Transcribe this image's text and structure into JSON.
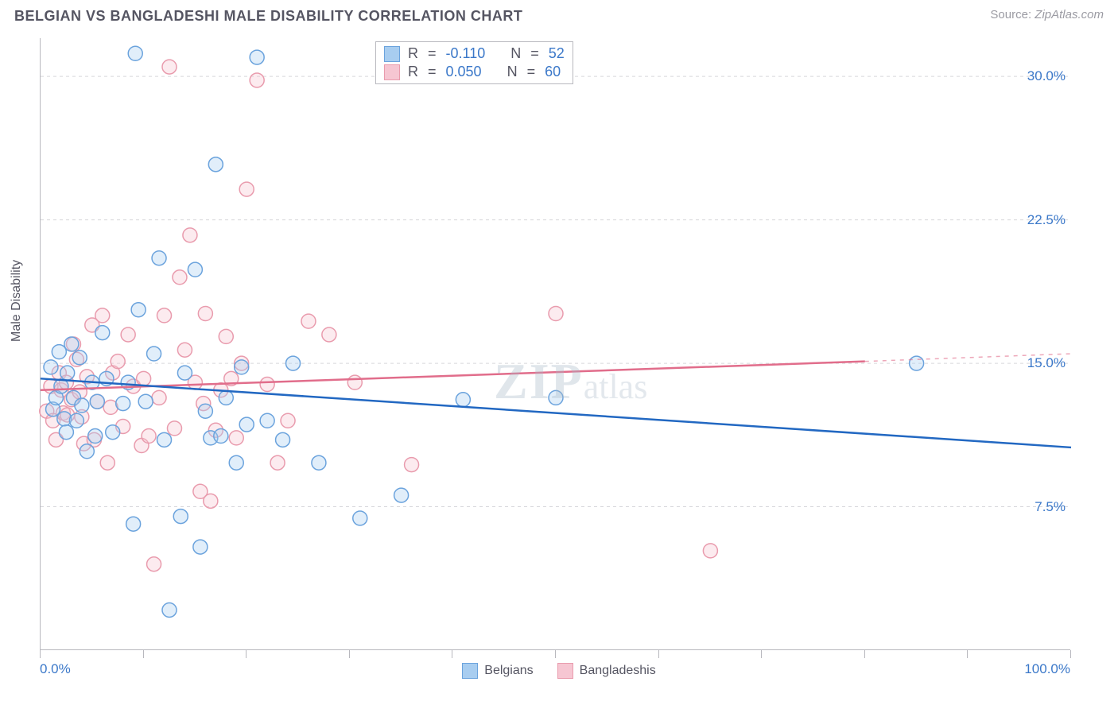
{
  "title": "BELGIAN VS BANGLADESHI MALE DISABILITY CORRELATION CHART",
  "source_label": "Source:",
  "source_value": "ZipAtlas.com",
  "ylabel": "Male Disability",
  "watermark": {
    "zip": "ZIP",
    "atlas": "atlas"
  },
  "chart": {
    "type": "scatter",
    "xlim": [
      0,
      100
    ],
    "ylim": [
      0,
      32
    ],
    "xtick_positions": [
      0,
      10,
      20,
      30,
      40,
      50,
      60,
      70,
      80,
      90,
      100
    ],
    "xtick_labels": {
      "0": "0.0%",
      "100": "100.0%"
    },
    "ytick_positions": [
      7.5,
      15.0,
      22.5,
      30.0
    ],
    "ytick_labels": [
      "7.5%",
      "15.0%",
      "22.5%",
      "30.0%"
    ],
    "grid_color": "#d6d6da",
    "axis_color": "#b8b8be",
    "background_color": "#ffffff",
    "marker_radius": 9,
    "marker_stroke_width": 1.5,
    "marker_fill_opacity": 0.35,
    "text_color": "#555562",
    "value_color": "#3b78c9",
    "label_fontsize": 16,
    "tick_fontsize": 17,
    "title_fontsize": 18
  },
  "series": [
    {
      "name": "Belgians",
      "color_stroke": "#6ba3dd",
      "color_fill": "#a8cdf0",
      "trend_color": "#2268c2",
      "trend_width": 2.5,
      "trend": {
        "x1": 0,
        "y1": 14.2,
        "x2": 100,
        "y2": 10.6
      },
      "R": "-0.110",
      "N": "52",
      "points": [
        [
          1.0,
          14.8
        ],
        [
          1.2,
          12.6
        ],
        [
          1.5,
          13.2
        ],
        [
          1.8,
          15.6
        ],
        [
          2.0,
          13.8
        ],
        [
          2.3,
          12.1
        ],
        [
          2.5,
          11.4
        ],
        [
          2.6,
          14.5
        ],
        [
          3.0,
          16.0
        ],
        [
          3.2,
          13.2
        ],
        [
          3.5,
          12.0
        ],
        [
          3.8,
          15.3
        ],
        [
          4.0,
          12.8
        ],
        [
          4.5,
          10.4
        ],
        [
          5.0,
          14.0
        ],
        [
          5.3,
          11.2
        ],
        [
          5.5,
          13.0
        ],
        [
          6.0,
          16.6
        ],
        [
          6.4,
          14.2
        ],
        [
          7.0,
          11.4
        ],
        [
          8.0,
          12.9
        ],
        [
          8.5,
          14.0
        ],
        [
          9.0,
          6.6
        ],
        [
          9.2,
          31.2
        ],
        [
          9.5,
          17.8
        ],
        [
          10.2,
          13.0
        ],
        [
          11.0,
          15.5
        ],
        [
          11.5,
          20.5
        ],
        [
          12.0,
          11.0
        ],
        [
          12.5,
          2.1
        ],
        [
          13.6,
          7.0
        ],
        [
          14.0,
          14.5
        ],
        [
          15.0,
          19.9
        ],
        [
          15.5,
          5.4
        ],
        [
          16.0,
          12.5
        ],
        [
          16.5,
          11.1
        ],
        [
          17.0,
          25.4
        ],
        [
          17.5,
          11.2
        ],
        [
          18.0,
          13.2
        ],
        [
          19.0,
          9.8
        ],
        [
          19.5,
          14.8
        ],
        [
          20.0,
          11.8
        ],
        [
          21.0,
          31.0
        ],
        [
          22.0,
          12.0
        ],
        [
          23.5,
          11.0
        ],
        [
          24.5,
          15.0
        ],
        [
          27.0,
          9.8
        ],
        [
          31.0,
          6.9
        ],
        [
          35.0,
          8.1
        ],
        [
          41.0,
          13.1
        ],
        [
          50.0,
          13.2
        ],
        [
          85.0,
          15.0
        ]
      ]
    },
    {
      "name": "Bangladeshis",
      "color_stroke": "#e99bad",
      "color_fill": "#f6c6d2",
      "trend_color": "#e16d8b",
      "trend_width": 2.5,
      "trend": {
        "x1": 0,
        "y1": 13.6,
        "x2": 80,
        "y2": 15.1
      },
      "extrap": {
        "x1": 80,
        "y1": 15.1,
        "x2": 100,
        "y2": 15.5
      },
      "R": "0.050",
      "N": "60",
      "points": [
        [
          0.6,
          12.5
        ],
        [
          1.0,
          13.8
        ],
        [
          1.2,
          12.0
        ],
        [
          1.5,
          11.0
        ],
        [
          1.8,
          14.5
        ],
        [
          2.0,
          13.6
        ],
        [
          2.2,
          12.4
        ],
        [
          2.5,
          14.0
        ],
        [
          2.6,
          12.3
        ],
        [
          3.0,
          13.1
        ],
        [
          3.2,
          16.0
        ],
        [
          3.5,
          15.2
        ],
        [
          3.8,
          13.5
        ],
        [
          4.0,
          12.2
        ],
        [
          4.2,
          10.8
        ],
        [
          4.5,
          14.3
        ],
        [
          5.0,
          17.0
        ],
        [
          5.2,
          11.0
        ],
        [
          5.5,
          13.0
        ],
        [
          6.0,
          17.5
        ],
        [
          6.5,
          9.8
        ],
        [
          6.8,
          12.7
        ],
        [
          7.0,
          14.5
        ],
        [
          7.5,
          15.1
        ],
        [
          8.0,
          11.7
        ],
        [
          8.5,
          16.5
        ],
        [
          9.0,
          13.8
        ],
        [
          9.8,
          10.7
        ],
        [
          10.0,
          14.2
        ],
        [
          10.5,
          11.2
        ],
        [
          11.0,
          4.5
        ],
        [
          11.5,
          13.2
        ],
        [
          12.0,
          17.5
        ],
        [
          12.5,
          30.5
        ],
        [
          13.0,
          11.6
        ],
        [
          13.5,
          19.5
        ],
        [
          14.0,
          15.7
        ],
        [
          14.5,
          21.7
        ],
        [
          15.0,
          14.0
        ],
        [
          15.5,
          8.3
        ],
        [
          15.8,
          12.9
        ],
        [
          16.0,
          17.6
        ],
        [
          16.5,
          7.8
        ],
        [
          17.0,
          11.5
        ],
        [
          17.5,
          13.6
        ],
        [
          18.0,
          16.4
        ],
        [
          18.5,
          14.2
        ],
        [
          19.0,
          11.1
        ],
        [
          19.5,
          15.0
        ],
        [
          20.0,
          24.1
        ],
        [
          21.0,
          29.8
        ],
        [
          22.0,
          13.9
        ],
        [
          23.0,
          9.8
        ],
        [
          24.0,
          12.0
        ],
        [
          26.0,
          17.2
        ],
        [
          28.0,
          16.5
        ],
        [
          30.5,
          14.0
        ],
        [
          36.0,
          9.7
        ],
        [
          50.0,
          17.6
        ],
        [
          65.0,
          5.2
        ]
      ]
    }
  ],
  "stats_box": {
    "R_label": "R",
    "N_label": "N",
    "eq": "="
  },
  "legend": {
    "series1_label": "Belgians",
    "series2_label": "Bangladeshis"
  }
}
